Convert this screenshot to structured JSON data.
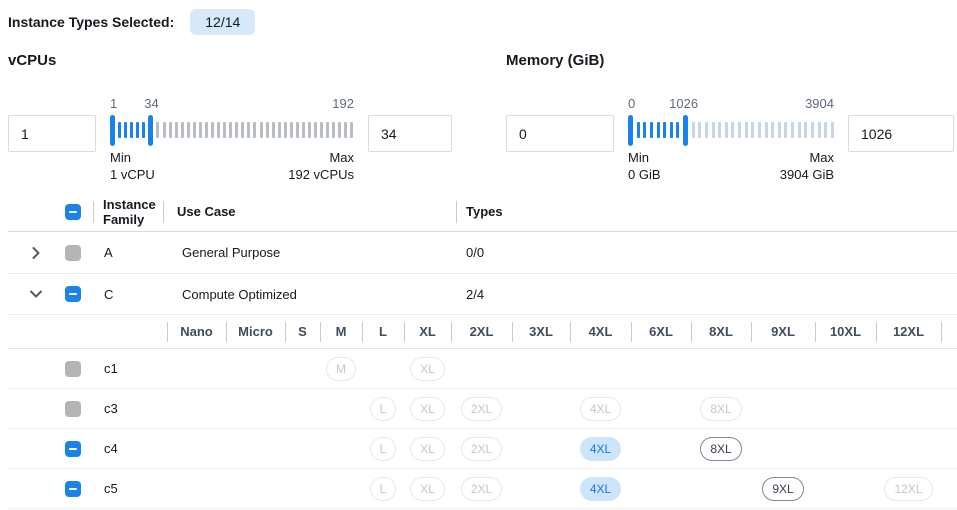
{
  "header": {
    "label": "Instance Types Selected:",
    "badge": "12/14"
  },
  "colors": {
    "accent": "#1a82e8",
    "badge_bg": "#d6e9fb",
    "selected_chip_bg": "#cde5fb",
    "selected_chip_text": "#1a73e8"
  },
  "filters": {
    "vcpus": {
      "label": "vCPUs",
      "min_input": "1",
      "max_input": "34",
      "scale": [
        "1",
        "34",
        "192"
      ],
      "mid_percent": 17,
      "active_ticks": 5,
      "inactive_ticks": 33,
      "inactive_color": "#b8bdc3",
      "track_width": 244,
      "min_input_width": 88,
      "max_input_width": 84,
      "min_caption": "Min",
      "min_value": "1 vCPU",
      "max_caption": "Max",
      "max_value": "192 vCPUs"
    },
    "memory": {
      "label": "Memory (GiB)",
      "min_input": "0",
      "max_input": "1026",
      "scale": [
        "0",
        "1026",
        "3904"
      ],
      "mid_percent": 27,
      "active_ticks": 7,
      "inactive_ticks": 22,
      "inactive_color": "#c7d4ec",
      "track_width": 206,
      "min_input_width": 108,
      "max_input_width": 106,
      "min_caption": "Min",
      "min_value": "0 GiB",
      "max_caption": "Max",
      "max_value": "3904 GiB"
    }
  },
  "table": {
    "headers": {
      "family": "Instance Family",
      "use_case": "Use Case",
      "types": "Types"
    },
    "family_rows": [
      {
        "family": "A",
        "use_case": "General Purpose",
        "types": "0/0",
        "expanded": false,
        "checkbox": "disabled"
      },
      {
        "family": "C",
        "use_case": "Compute Optimized",
        "types": "2/4",
        "expanded": true,
        "checkbox": "indeterminate"
      }
    ],
    "size_columns": [
      "Nano",
      "Micro",
      "S",
      "M",
      "L",
      "XL",
      "2XL",
      "3XL",
      "4XL",
      "6XL",
      "8XL",
      "9XL",
      "10XL",
      "12XL"
    ],
    "size_rows": [
      {
        "name": "c1",
        "checkbox": "disabled",
        "chips": [
          {
            "col": "M",
            "state": "disabled"
          },
          {
            "col": "XL",
            "state": "disabled"
          }
        ]
      },
      {
        "name": "c3",
        "checkbox": "disabled",
        "chips": [
          {
            "col": "L",
            "state": "disabled"
          },
          {
            "col": "XL",
            "state": "disabled"
          },
          {
            "col": "2XL",
            "state": "disabled"
          },
          {
            "col": "4XL",
            "state": "disabled"
          },
          {
            "col": "8XL",
            "state": "disabled"
          }
        ]
      },
      {
        "name": "c4",
        "checkbox": "indeterminate",
        "chips": [
          {
            "col": "L",
            "state": "disabled"
          },
          {
            "col": "XL",
            "state": "disabled"
          },
          {
            "col": "2XL",
            "state": "disabled"
          },
          {
            "col": "4XL",
            "state": "selected"
          },
          {
            "col": "8XL",
            "state": "enabled"
          }
        ]
      },
      {
        "name": "c5",
        "checkbox": "indeterminate",
        "chips": [
          {
            "col": "L",
            "state": "disabled"
          },
          {
            "col": "XL",
            "state": "disabled"
          },
          {
            "col": "2XL",
            "state": "disabled"
          },
          {
            "col": "4XL",
            "state": "selected"
          },
          {
            "col": "9XL",
            "state": "enabled"
          },
          {
            "col": "12XL",
            "state": "disabled"
          }
        ]
      }
    ]
  }
}
